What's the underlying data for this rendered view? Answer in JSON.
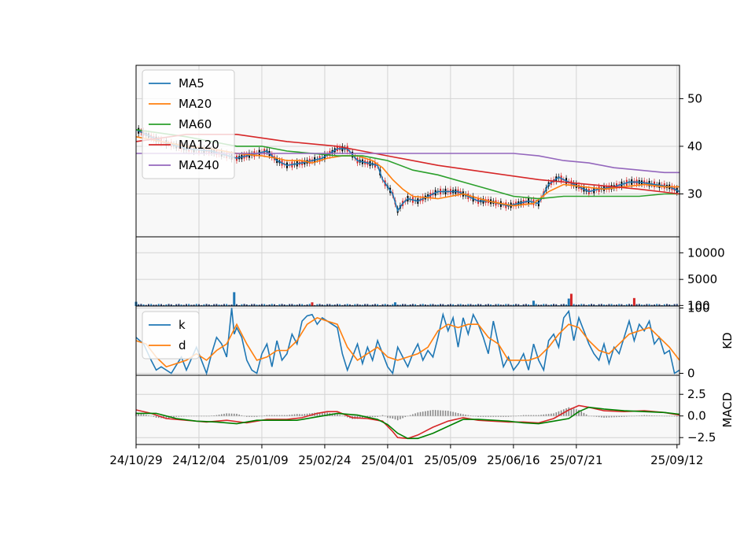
{
  "chart_data": [
    {
      "type": "candlestick",
      "panel": "price",
      "title": "",
      "ylim": [
        21,
        57
      ],
      "yticks": [
        30,
        40,
        50
      ],
      "xlim": [
        0,
        216
      ],
      "grid": true,
      "legend_placement": "top-left",
      "legend": [
        "MA5",
        "MA20",
        "MA60",
        "MA120",
        "MA240"
      ],
      "series": [
        {
          "name": "MA5",
          "color": "#1f77b4",
          "x": [
            0,
            10,
            20,
            30,
            40,
            52,
            56,
            60,
            66,
            70,
            74,
            80,
            84,
            88,
            92,
            96,
            98,
            102,
            104,
            106,
            108,
            112,
            120,
            128,
            136,
            140,
            144,
            148,
            156,
            160,
            164,
            168,
            172,
            176,
            180,
            184,
            190,
            196,
            200,
            206,
            212,
            216
          ],
          "values": [
            43.5,
            41,
            39.5,
            39,
            37.5,
            39,
            37,
            36,
            36.5,
            37,
            37.5,
            39.5,
            39.5,
            37,
            36.5,
            36,
            33,
            30,
            26.5,
            28,
            29,
            28.5,
            30.5,
            30.5,
            28.5,
            28.5,
            28,
            27.5,
            28.5,
            28,
            32,
            33.5,
            32.5,
            31.5,
            30.5,
            31,
            31.5,
            32.5,
            32.5,
            32,
            31.5,
            30.5
          ]
        },
        {
          "name": "MA20",
          "color": "#ff7f0e",
          "x": [
            0,
            10,
            20,
            30,
            40,
            50,
            56,
            60,
            66,
            70,
            76,
            82,
            88,
            94,
            98,
            102,
            106,
            110,
            120,
            130,
            140,
            150,
            158,
            164,
            170,
            178,
            186,
            194,
            202,
            210,
            216
          ],
          "values": [
            42,
            41,
            40,
            39.5,
            38.5,
            38,
            37.5,
            37,
            37,
            36.5,
            37.5,
            38,
            38,
            37,
            35.5,
            33,
            31,
            29.5,
            29,
            30,
            28.5,
            27.5,
            28,
            30.5,
            32,
            31.5,
            31,
            31.5,
            32,
            31.5,
            31.5
          ]
        },
        {
          "name": "MA60",
          "color": "#2ca02c",
          "x": [
            0,
            20,
            30,
            40,
            50,
            60,
            70,
            80,
            90,
            100,
            110,
            120,
            130,
            140,
            150,
            160,
            170,
            180,
            190,
            200,
            210,
            216
          ],
          "values": [
            43.5,
            42,
            41,
            40,
            40,
            39,
            38.5,
            38,
            38,
            37,
            35,
            34,
            32.5,
            31,
            29.5,
            29,
            29.5,
            29.5,
            29.5,
            29.5,
            30,
            30
          ]
        },
        {
          "name": "MA120",
          "color": "#d62728",
          "x": [
            0,
            20,
            40,
            60,
            80,
            100,
            120,
            140,
            160,
            180,
            200,
            216
          ],
          "values": [
            41,
            42.5,
            42.5,
            41,
            40,
            38,
            36,
            34.5,
            33,
            32,
            31,
            30
          ]
        },
        {
          "name": "MA240",
          "color": "#9467bd",
          "x": [
            0,
            40,
            60,
            80,
            100,
            120,
            140,
            150,
            160,
            170,
            180,
            190,
            200,
            210,
            216
          ],
          "values": [
            38.5,
            38.5,
            38.5,
            38.5,
            38.5,
            38.5,
            38.5,
            38.5,
            38,
            37,
            36.5,
            35.5,
            35,
            34.5,
            34.5
          ]
        }
      ]
    },
    {
      "type": "bar",
      "panel": "volume",
      "ylim": [
        0,
        13000
      ],
      "yticks": [
        100,
        5000,
        10000
      ],
      "grid": true,
      "spikes": [
        {
          "x": 39,
          "value": 2600,
          "color": "#1f77b4"
        },
        {
          "x": 70,
          "value": 700,
          "color": "#d62728"
        },
        {
          "x": 103,
          "value": 700,
          "color": "#1f77b4"
        },
        {
          "x": 158,
          "value": 1000,
          "color": "#1f77b4"
        },
        {
          "x": 172,
          "value": 1400,
          "color": "#1f77b4"
        },
        {
          "x": 173,
          "value": 2300,
          "color": "#d62728"
        },
        {
          "x": 198,
          "value": 1500,
          "color": "#d62728"
        },
        {
          "x": 0,
          "value": 800,
          "color": "#1f77b4"
        }
      ]
    },
    {
      "type": "line",
      "panel": "kd",
      "ylabel": "KD",
      "ylim": [
        -3,
        103
      ],
      "yticks": [
        0,
        100
      ],
      "grid": true,
      "legend_placement": "top-left",
      "legend": [
        "k",
        "d"
      ],
      "series": [
        {
          "name": "k",
          "color": "#1f77b4",
          "x": [
            0,
            3,
            6,
            8,
            10,
            14,
            18,
            20,
            24,
            26,
            28,
            30,
            32,
            34,
            36,
            38,
            39,
            40,
            42,
            44,
            46,
            48,
            50,
            52,
            54,
            56,
            58,
            60,
            62,
            64,
            66,
            68,
            70,
            72,
            74,
            76,
            80,
            82,
            84,
            86,
            88,
            90,
            92,
            94,
            96,
            98,
            100,
            102,
            104,
            106,
            108,
            110,
            112,
            114,
            116,
            118,
            120,
            122,
            124,
            126,
            128,
            130,
            132,
            134,
            136,
            138,
            140,
            142,
            144,
            146,
            148,
            150,
            152,
            154,
            156,
            158,
            160,
            162,
            164,
            166,
            168,
            170,
            172,
            174,
            176,
            178,
            180,
            182,
            184,
            186,
            188,
            190,
            192,
            194,
            196,
            198,
            200,
            202,
            204,
            206,
            208,
            210,
            212,
            214,
            216
          ],
          "values": [
            55,
            45,
            20,
            5,
            10,
            0,
            25,
            5,
            40,
            20,
            0,
            30,
            55,
            45,
            25,
            100,
            60,
            70,
            55,
            20,
            5,
            0,
            30,
            45,
            10,
            50,
            20,
            30,
            60,
            45,
            80,
            88,
            90,
            75,
            85,
            80,
            70,
            30,
            5,
            25,
            45,
            15,
            40,
            20,
            50,
            30,
            10,
            0,
            40,
            25,
            10,
            30,
            45,
            20,
            35,
            25,
            55,
            90,
            65,
            85,
            40,
            85,
            60,
            90,
            75,
            55,
            30,
            80,
            45,
            10,
            25,
            5,
            15,
            30,
            5,
            45,
            20,
            5,
            50,
            60,
            40,
            85,
            95,
            50,
            85,
            65,
            45,
            30,
            20,
            45,
            15,
            40,
            30,
            55,
            80,
            50,
            75,
            65,
            80,
            45,
            55,
            30,
            35,
            0,
            5
          ]
        },
        {
          "name": "d",
          "color": "#ff7f0e",
          "x": [
            0,
            4,
            8,
            12,
            16,
            20,
            24,
            28,
            32,
            36,
            38,
            40,
            44,
            48,
            52,
            56,
            60,
            64,
            68,
            72,
            76,
            80,
            84,
            88,
            92,
            96,
            100,
            104,
            108,
            112,
            116,
            120,
            124,
            128,
            132,
            136,
            140,
            144,
            148,
            152,
            156,
            160,
            164,
            168,
            172,
            176,
            180,
            184,
            188,
            192,
            196,
            200,
            204,
            208,
            212,
            216
          ],
          "values": [
            50,
            45,
            25,
            10,
            15,
            20,
            30,
            20,
            35,
            45,
            60,
            75,
            45,
            20,
            25,
            35,
            35,
            50,
            75,
            85,
            80,
            75,
            40,
            20,
            30,
            40,
            25,
            20,
            25,
            30,
            40,
            65,
            75,
            70,
            75,
            75,
            55,
            45,
            20,
            20,
            20,
            25,
            40,
            60,
            75,
            70,
            50,
            35,
            30,
            45,
            60,
            65,
            70,
            55,
            40,
            20
          ]
        }
      ]
    },
    {
      "type": "bar+line",
      "panel": "macd",
      "ylabel": "MACD",
      "ylim": [
        -3.3,
        4.7
      ],
      "yticks": [
        -2.5,
        0.0,
        2.5
      ],
      "grid": true,
      "series": [
        {
          "name": "",
          "color": "#d62728",
          "x": [
            0,
            6,
            12,
            20,
            28,
            36,
            44,
            52,
            60,
            66,
            72,
            76,
            80,
            86,
            92,
            98,
            102,
            104,
            108,
            112,
            118,
            124,
            130,
            136,
            142,
            148,
            154,
            160,
            166,
            172,
            176,
            180,
            186,
            194,
            202,
            210,
            216
          ],
          "values": [
            0.7,
            0.3,
            -0.3,
            -0.5,
            -0.7,
            -0.5,
            -0.8,
            -0.4,
            -0.4,
            -0.2,
            0.3,
            0.5,
            0.5,
            -0.2,
            -0.3,
            -0.6,
            -1.8,
            -2.5,
            -2.6,
            -2.2,
            -1.3,
            -0.6,
            -0.2,
            -0.5,
            -0.6,
            -0.7,
            -0.7,
            -0.8,
            -0.3,
            0.7,
            1.2,
            1.0,
            0.6,
            0.5,
            0.6,
            0.4,
            0.1
          ]
        },
        {
          "name": "",
          "color": "#008000",
          "x": [
            0,
            8,
            16,
            24,
            32,
            40,
            48,
            56,
            64,
            72,
            80,
            88,
            96,
            100,
            104,
            108,
            112,
            118,
            124,
            130,
            136,
            142,
            148,
            154,
            160,
            166,
            172,
            176,
            180,
            186,
            194,
            202,
            210,
            216
          ],
          "values": [
            0.3,
            0.3,
            -0.3,
            -0.6,
            -0.7,
            -0.9,
            -0.5,
            -0.5,
            -0.5,
            -0.1,
            0.3,
            0.1,
            -0.4,
            -1.0,
            -2.0,
            -2.6,
            -2.6,
            -2.0,
            -1.2,
            -0.4,
            -0.4,
            -0.5,
            -0.6,
            -0.8,
            -0.9,
            -0.6,
            -0.3,
            0.5,
            1.0,
            0.8,
            0.6,
            0.5,
            0.4,
            0.2
          ]
        }
      ]
    },
    {
      "type": "xaxis",
      "xticks": [
        0,
        25,
        50,
        75,
        100,
        125,
        150,
        175,
        215
      ],
      "xticklabels": [
        "24/10/29",
        "24/12/04",
        "25/01/09",
        "25/02/24",
        "25/04/01",
        "25/05/09",
        "25/06/16",
        "25/07/21",
        "25/09/12"
      ]
    }
  ]
}
